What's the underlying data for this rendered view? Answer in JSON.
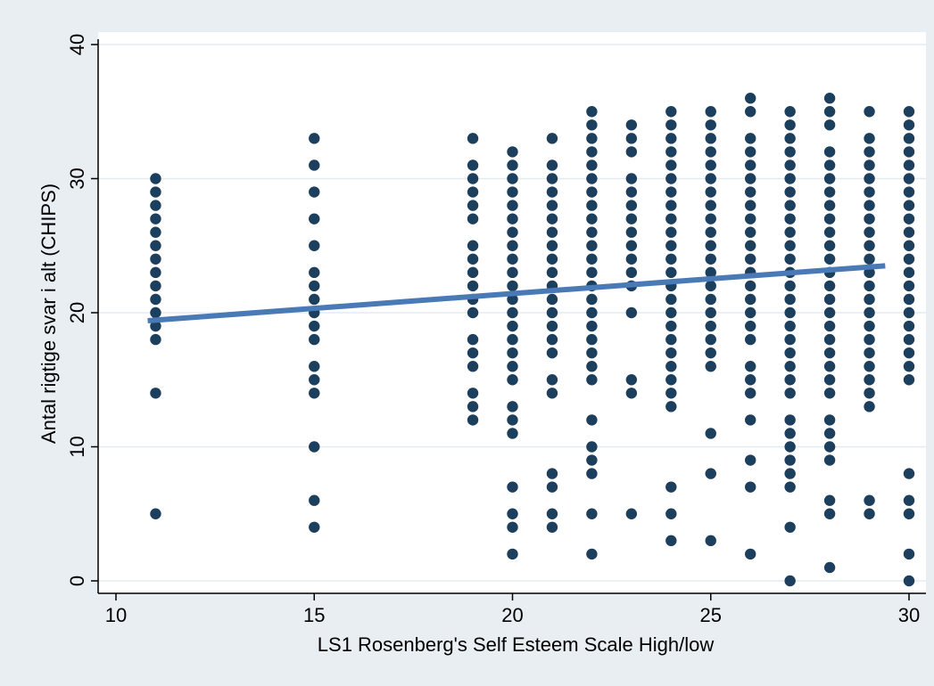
{
  "chart_data": {
    "type": "scatter",
    "xlabel": "LS1 Rosenberg's Self Esteem Scale High/low",
    "ylabel": "Antal rigtige svar i alt (CHIPS)",
    "xlim": [
      10,
      30
    ],
    "ylim": [
      0,
      40
    ],
    "x_ticks": [
      10,
      15,
      20,
      25,
      30
    ],
    "y_ticks": [
      0,
      10,
      20,
      30,
      40
    ],
    "grid": true,
    "colors": {
      "background": "#e8eef2",
      "plot_background": "#ffffff",
      "points": "#1c3f5e",
      "fit_line": "#4a7ab5",
      "grid": "#e4ebf0"
    },
    "points": [
      {
        "x": 11,
        "y": [
          5,
          14,
          18,
          19,
          20,
          21,
          22,
          23,
          24,
          25,
          26,
          27,
          28,
          29,
          30
        ]
      },
      {
        "x": 15,
        "y": [
          4,
          6,
          10,
          14,
          15,
          16,
          18,
          19,
          20,
          21,
          22,
          23,
          25,
          27,
          29,
          31,
          33
        ]
      },
      {
        "x": 19,
        "y": [
          12,
          13,
          14,
          16,
          17,
          18,
          20,
          21,
          22,
          23,
          24,
          25,
          27,
          28,
          29,
          30,
          31,
          33
        ]
      },
      {
        "x": 20,
        "y": [
          2,
          4,
          5,
          7,
          11,
          12,
          13,
          15,
          16,
          17,
          18,
          19,
          20,
          21,
          22,
          23,
          24,
          25,
          26,
          27,
          28,
          29,
          30,
          31,
          32
        ]
      },
      {
        "x": 21,
        "y": [
          4,
          5,
          7,
          8,
          14,
          15,
          17,
          18,
          19,
          20,
          21,
          22,
          23,
          24,
          25,
          26,
          27,
          28,
          29,
          30,
          31,
          33
        ]
      },
      {
        "x": 22,
        "y": [
          2,
          5,
          8,
          9,
          10,
          12,
          15,
          16,
          17,
          18,
          19,
          20,
          21,
          22,
          23,
          24,
          25,
          26,
          27,
          28,
          29,
          30,
          31,
          32,
          33,
          34,
          35
        ]
      },
      {
        "x": 23,
        "y": [
          5,
          14,
          15,
          20,
          22,
          23,
          24,
          25,
          26,
          27,
          28,
          29,
          30,
          32,
          33,
          34
        ]
      },
      {
        "x": 24,
        "y": [
          3,
          5,
          7,
          13,
          14,
          15,
          16,
          17,
          18,
          19,
          20,
          21,
          22,
          23,
          24,
          25,
          26,
          27,
          28,
          29,
          30,
          31,
          32,
          33,
          34,
          35
        ]
      },
      {
        "x": 25,
        "y": [
          3,
          8,
          11,
          16,
          17,
          18,
          19,
          20,
          21,
          22,
          23,
          24,
          25,
          26,
          27,
          28,
          29,
          30,
          31,
          32,
          33,
          34,
          35
        ]
      },
      {
        "x": 26,
        "y": [
          2,
          7,
          9,
          12,
          14,
          15,
          16,
          18,
          19,
          20,
          21,
          22,
          23,
          24,
          25,
          26,
          27,
          28,
          29,
          30,
          31,
          32,
          33,
          35,
          36
        ]
      },
      {
        "x": 27,
        "y": [
          0,
          4,
          7,
          8,
          9,
          10,
          11,
          12,
          14,
          15,
          16,
          17,
          18,
          19,
          20,
          21,
          22,
          23,
          24,
          25,
          26,
          27,
          28,
          29,
          30,
          31,
          32,
          33,
          34,
          35
        ]
      },
      {
        "x": 28,
        "y": [
          1,
          5,
          6,
          9,
          10,
          11,
          12,
          14,
          15,
          16,
          17,
          18,
          19,
          20,
          21,
          22,
          23,
          24,
          25,
          26,
          27,
          28,
          29,
          30,
          31,
          32,
          34,
          35,
          36
        ]
      },
      {
        "x": 29,
        "y": [
          5,
          6,
          13,
          14,
          15,
          16,
          17,
          18,
          19,
          20,
          21,
          22,
          23,
          24,
          25,
          26,
          27,
          28,
          29,
          30,
          31,
          32,
          33,
          35
        ]
      },
      {
        "x": 30,
        "y": [
          0,
          2,
          5,
          6,
          8,
          15,
          16,
          17,
          18,
          19,
          20,
          21,
          22,
          23,
          24,
          25,
          26,
          27,
          28,
          29,
          30,
          31,
          32,
          33,
          34,
          35
        ]
      }
    ],
    "fit_line": {
      "x": [
        10.8,
        29.4
      ],
      "y": [
        19.4,
        23.5
      ]
    }
  }
}
